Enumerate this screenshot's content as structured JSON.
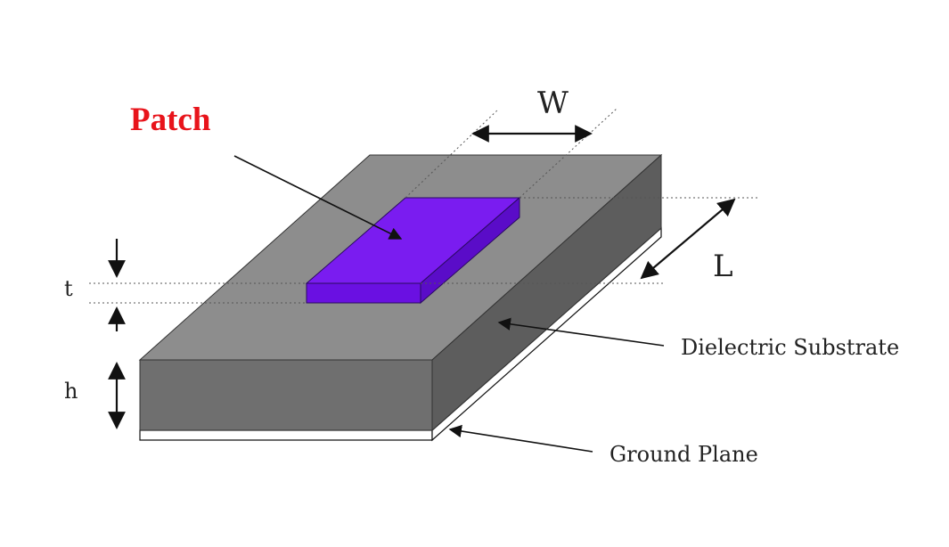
{
  "labels": {
    "patch": "Patch",
    "width": "W",
    "length": "L",
    "thickness": "t",
    "height": "h",
    "substrate": "Dielectric Substrate",
    "ground": "Ground Plane"
  },
  "colors": {
    "patch_label": "#e8141b",
    "patch_top": "#7a1cf0",
    "patch_front": "#6a10e2",
    "patch_side": "#5a0cc8",
    "substrate_top": "#8d8d8d",
    "substrate_front": "#6f6f6f",
    "substrate_side": "#5d5d5d",
    "ground": "#ffffff",
    "line": "#111111"
  }
}
